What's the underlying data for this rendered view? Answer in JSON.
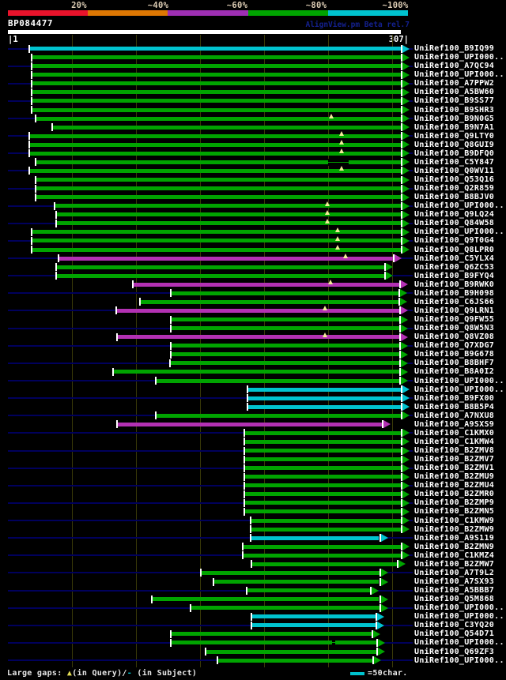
{
  "header": {
    "query_id": "BP084477",
    "watermark": "AlignView.pm Beta rel.7",
    "axis_start_label": "|1",
    "axis_end_label": "307|",
    "scale_labels": [
      "20%",
      "~40%",
      "~60%",
      "~80%",
      "~100%"
    ],
    "scale_label_centers": [
      100,
      200,
      300,
      400,
      500
    ]
  },
  "footer": {
    "legend_prefix": "Large gaps: ",
    "gap_query_symbol": "▲",
    "legend_mid": "(in Query)/",
    "gap_subject_symbol": "-",
    "legend_suffix": " (in Subject)",
    "scalebar_label": "=50char."
  },
  "colors": {
    "green": "#00a400",
    "cyan": "#00c3cf",
    "magenta": "#b331b3",
    "navy_guide": "#00005c",
    "gridline": "#3a3a08",
    "gap_marker": "#f3ec96",
    "white": "#ffffff",
    "scale_segments": [
      "#e8132b",
      "#dd7703",
      "#9e2fb3",
      "#00a400",
      "#00c3cf"
    ]
  },
  "chart_data": {
    "type": "alignment-overview",
    "title": "BP084477",
    "query_length": 307,
    "x_axis": {
      "min": 1,
      "max": 307,
      "gridline_interval": 50
    },
    "identity_legend": [
      {
        "label": "20%",
        "color": "#e8132b"
      },
      {
        "label": "~40%",
        "color": "#dd7703"
      },
      {
        "label": "~60%",
        "color": "#9e2fb3"
      },
      {
        "label": "~80%",
        "color": "#00a400"
      },
      {
        "label": "~100%",
        "color": "#00c3cf"
      }
    ],
    "hits": [
      {
        "label": "UniRef100_B9IQ99",
        "color": "cyan",
        "from": 17,
        "to": 307
      },
      {
        "label": "UniRef100_UPI000..",
        "color": "green",
        "from": 19,
        "to": 307
      },
      {
        "label": "UniRef100_A7QC94",
        "color": "green",
        "from": 19,
        "to": 307
      },
      {
        "label": "UniRef100_UPI000..",
        "color": "green",
        "from": 19,
        "to": 307
      },
      {
        "label": "UniRef100_A7PPW2",
        "color": "green",
        "from": 19,
        "to": 307
      },
      {
        "label": "UniRef100_A5BW60",
        "color": "green",
        "from": 19,
        "to": 307
      },
      {
        "label": "UniRef100_B9SS77",
        "color": "green",
        "from": 19,
        "to": 307
      },
      {
        "label": "UniRef100_B9SHR3",
        "color": "green",
        "from": 19,
        "to": 307
      },
      {
        "label": "UniRef100_B9N0G5",
        "color": "green",
        "from": 22,
        "to": 307,
        "gaps": [
          253
        ]
      },
      {
        "label": "UniRef100_B9N7A1",
        "color": "green",
        "from": 35,
        "to": 307
      },
      {
        "label": "UniRef100_Q9LTY0",
        "color": "green",
        "from": 17,
        "to": 307,
        "gaps": [
          261
        ]
      },
      {
        "label": "UniRef100_Q8GUI9",
        "color": "green",
        "from": 17,
        "to": 307,
        "gaps": [
          261
        ]
      },
      {
        "label": "UniRef100_B9DFQ0",
        "color": "green",
        "from": 17,
        "to": 307,
        "gaps": [
          261
        ]
      },
      {
        "label": "UniRef100_C5Y847",
        "color": "green",
        "from": 22,
        "to": 307,
        "breaks": [
          [
            250,
            266
          ]
        ]
      },
      {
        "label": "UniRef100_Q0WV11",
        "color": "green",
        "from": 17,
        "to": 307,
        "gaps": [
          261
        ]
      },
      {
        "label": "UniRef100_Q53Q16",
        "color": "green",
        "from": 22,
        "to": 307
      },
      {
        "label": "UniRef100_Q2R859",
        "color": "green",
        "from": 22,
        "to": 307
      },
      {
        "label": "UniRef100_B8BJV0",
        "color": "green",
        "from": 22,
        "to": 307
      },
      {
        "label": "UniRef100_UPI000..",
        "color": "green",
        "from": 37,
        "to": 307,
        "gaps": [
          250
        ]
      },
      {
        "label": "UniRef100_Q9LQ24",
        "color": "green",
        "from": 38,
        "to": 307,
        "gaps": [
          250
        ]
      },
      {
        "label": "UniRef100_Q84W58",
        "color": "green",
        "from": 38,
        "to": 307,
        "gaps": [
          250
        ]
      },
      {
        "label": "UniRef100_UPI000..",
        "color": "green",
        "from": 19,
        "to": 307,
        "gaps": [
          258
        ]
      },
      {
        "label": "UniRef100_Q9T0G4",
        "color": "green",
        "from": 19,
        "to": 307,
        "gaps": [
          258
        ]
      },
      {
        "label": "UniRef100_Q8LPR0",
        "color": "green",
        "from": 19,
        "to": 307,
        "gaps": [
          258
        ]
      },
      {
        "label": "UniRef100_C5YLX4",
        "color": "magenta",
        "from": 40,
        "to": 301,
        "gaps": [
          264
        ]
      },
      {
        "label": "UniRef100_Q6ZC53",
        "color": "green",
        "from": 38,
        "to": 294
      },
      {
        "label": "UniRef100_B9FYQ4",
        "color": "green",
        "from": 38,
        "to": 294
      },
      {
        "label": "UniRef100_B9RWK0",
        "color": "magenta",
        "from": 98,
        "to": 306,
        "gaps": [
          252
        ]
      },
      {
        "label": "UniRef100_B9H098",
        "color": "green",
        "from": 128,
        "to": 305
      },
      {
        "label": "UniRef100_C6JS66",
        "color": "green",
        "from": 104,
        "to": 305
      },
      {
        "label": "UniRef100_Q9LRN1",
        "color": "magenta",
        "from": 85,
        "to": 306,
        "gaps": [
          248
        ]
      },
      {
        "label": "UniRef100_Q9FW55",
        "color": "green",
        "from": 128,
        "to": 306
      },
      {
        "label": "UniRef100_Q8W5N3",
        "color": "green",
        "from": 128,
        "to": 306
      },
      {
        "label": "UniRef100_Q8VZ08",
        "color": "magenta",
        "from": 86,
        "to": 306,
        "gaps": [
          248
        ]
      },
      {
        "label": "UniRef100_Q7XDG7",
        "color": "green",
        "from": 128,
        "to": 306
      },
      {
        "label": "UniRef100_B9G678",
        "color": "green",
        "from": 128,
        "to": 306
      },
      {
        "label": "UniRef100_B8BHF7",
        "color": "green",
        "from": 127,
        "to": 306
      },
      {
        "label": "UniRef100_B8A0I2",
        "color": "green",
        "from": 83,
        "to": 306
      },
      {
        "label": "UniRef100_UPI000..",
        "color": "green",
        "from": 116,
        "to": 306
      },
      {
        "label": "UniRef100_UPI000..",
        "color": "cyan",
        "from": 188,
        "to": 307
      },
      {
        "label": "UniRef100_B9FX00",
        "color": "cyan",
        "from": 188,
        "to": 307
      },
      {
        "label": "UniRef100_B8B5P4",
        "color": "cyan",
        "from": 188,
        "to": 307
      },
      {
        "label": "UniRef100_A7NXU8",
        "color": "green",
        "from": 116,
        "to": 307
      },
      {
        "label": "UniRef100_A9SXS9",
        "color": "magenta",
        "from": 86,
        "to": 292
      },
      {
        "label": "UniRef100_C1KMX0",
        "color": "green",
        "from": 185,
        "to": 307
      },
      {
        "label": "UniRef100_C1KMW4",
        "color": "green",
        "from": 185,
        "to": 307
      },
      {
        "label": "UniRef100_B2ZMV8",
        "color": "green",
        "from": 185,
        "to": 307
      },
      {
        "label": "UniRef100_B2ZMV7",
        "color": "green",
        "from": 185,
        "to": 307
      },
      {
        "label": "UniRef100_B2ZMV1",
        "color": "green",
        "from": 185,
        "to": 307
      },
      {
        "label": "UniRef100_B2ZMU9",
        "color": "green",
        "from": 185,
        "to": 307
      },
      {
        "label": "UniRef100_B2ZMU4",
        "color": "green",
        "from": 185,
        "to": 307
      },
      {
        "label": "UniRef100_B2ZMR0",
        "color": "green",
        "from": 185,
        "to": 307
      },
      {
        "label": "UniRef100_B2ZMP9",
        "color": "green",
        "from": 185,
        "to": 307
      },
      {
        "label": "UniRef100_B2ZMN5",
        "color": "green",
        "from": 185,
        "to": 307
      },
      {
        "label": "UniRef100_C1KMW9",
        "color": "green",
        "from": 190,
        "to": 307
      },
      {
        "label": "UniRef100_B2ZMW9",
        "color": "green",
        "from": 190,
        "to": 307
      },
      {
        "label": "UniRef100_A9S119",
        "color": "cyan",
        "from": 190,
        "to": 290
      },
      {
        "label": "UniRef100_B2ZMN9",
        "color": "green",
        "from": 184,
        "to": 307
      },
      {
        "label": "UniRef100_C1KMZ4",
        "color": "green",
        "from": 184,
        "to": 307
      },
      {
        "label": "UniRef100_B2ZMW7",
        "color": "green",
        "from": 191,
        "to": 304
      },
      {
        "label": "UniRef100_A7T9L2",
        "color": "green",
        "from": 151,
        "to": 290
      },
      {
        "label": "UniRef100_A7SX93",
        "color": "green",
        "from": 161,
        "to": 290
      },
      {
        "label": "UniRef100_A5BBB7",
        "color": "green",
        "from": 187,
        "to": 283
      },
      {
        "label": "UniRef100_Q5M868",
        "color": "green",
        "from": 113,
        "to": 290
      },
      {
        "label": "UniRef100_UPI000..",
        "color": "green",
        "from": 143,
        "to": 290
      },
      {
        "label": "UniRef100_UPI000..",
        "color": "cyan",
        "from": 191,
        "to": 287
      },
      {
        "label": "UniRef100_C3YQ20",
        "color": "cyan",
        "from": 191,
        "to": 287
      },
      {
        "label": "UniRef100_Q54D71",
        "color": "green",
        "from": 128,
        "to": 284
      },
      {
        "label": "UniRef100_UPI000..",
        "color": "green",
        "from": 128,
        "to": 288,
        "breaks": [
          [
            253,
            256
          ]
        ]
      },
      {
        "label": "UniRef100_Q69ZF3",
        "color": "green",
        "from": 155,
        "to": 288
      },
      {
        "label": "UniRef100_UPI000..",
        "color": "green",
        "from": 164,
        "to": 285
      }
    ]
  }
}
